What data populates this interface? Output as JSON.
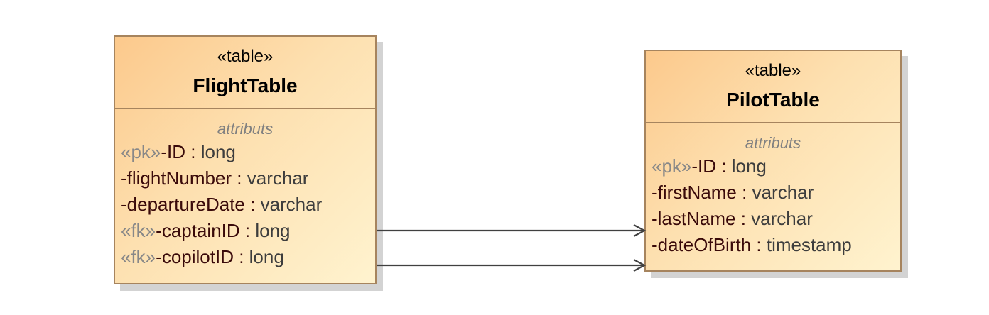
{
  "tables": [
    {
      "stereotype": "«table»",
      "name": "FlightTable",
      "section": "attributs",
      "attributes": [
        {
          "stereotype": "«pk»",
          "name": "-ID",
          "sep": " : ",
          "type": "long"
        },
        {
          "stereotype": "",
          "name": "-flightNumber",
          "sep": " : ",
          "type": "varchar"
        },
        {
          "stereotype": "",
          "name": "-departureDate",
          "sep": " : ",
          "type": "varchar"
        },
        {
          "stereotype": "«fk»",
          "name": "-captainID",
          "sep": " : ",
          "type": "long"
        },
        {
          "stereotype": "«fk»",
          "name": "-copilotID",
          "sep": " : ",
          "type": "long"
        }
      ]
    },
    {
      "stereotype": "«table»",
      "name": "PilotTable",
      "section": "attributs",
      "attributes": [
        {
          "stereotype": "«pk»",
          "name": "-ID",
          "sep": " : ",
          "type": "long"
        },
        {
          "stereotype": "",
          "name": "-firstName",
          "sep": " : ",
          "type": "varchar"
        },
        {
          "stereotype": "",
          "name": "-lastName",
          "sep": " : ",
          "type": "varchar"
        },
        {
          "stereotype": "",
          "name": "-dateOfBirth",
          "sep": " : ",
          "type": "timestamp"
        }
      ]
    }
  ],
  "colors": {
    "border": "#a6845e",
    "stereotype_text": "#888888",
    "connector": "#404040"
  }
}
